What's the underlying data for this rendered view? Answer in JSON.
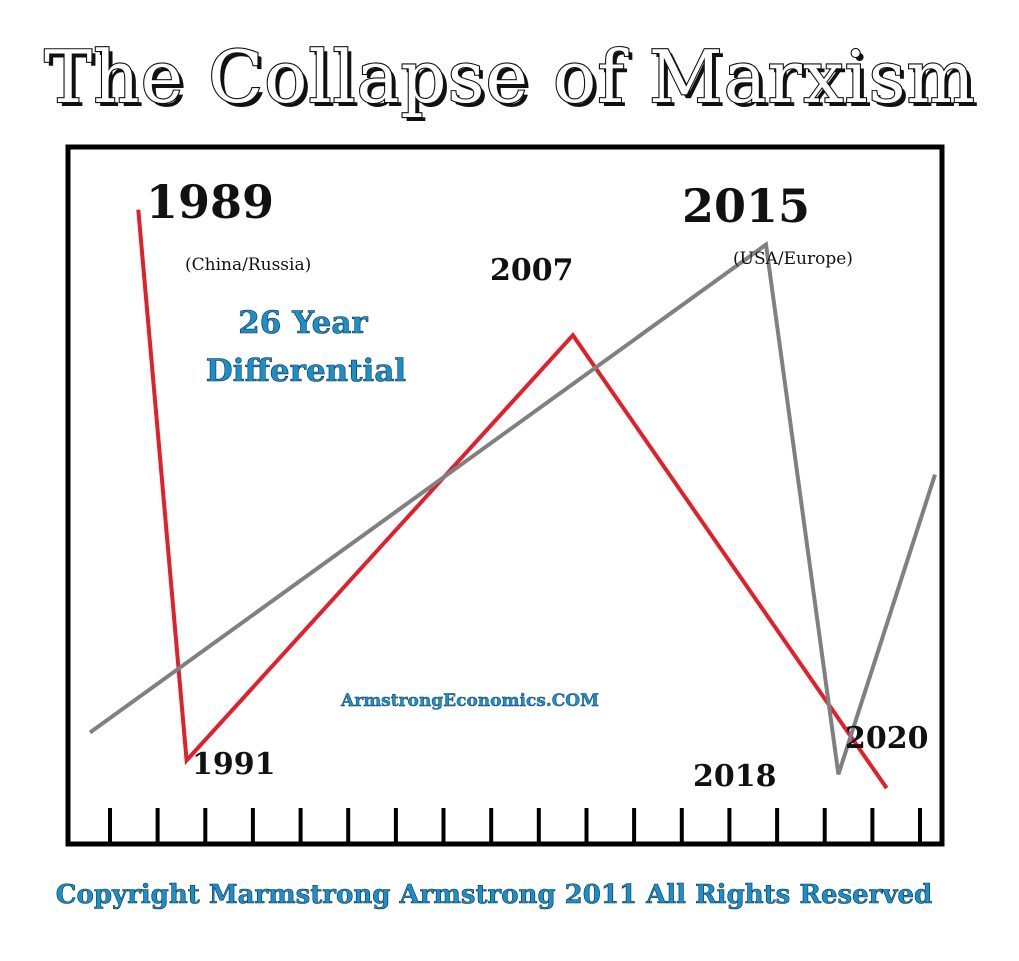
{
  "title": "The Collapse of Marxism",
  "chart_data": {
    "type": "line",
    "series": [
      {
        "color": "#e0202a",
        "points": [
          {
            "year": 1989,
            "level": 0.91
          },
          {
            "year": 1991,
            "level": 0.12
          },
          {
            "year": 2007,
            "level": 0.73
          },
          {
            "year": 2020,
            "level": 0.08
          }
        ]
      },
      {
        "color": "#808080",
        "points": [
          {
            "year": 1987,
            "level": 0.16
          },
          {
            "year": 2015,
            "level": 0.86
          },
          {
            "year": 2018,
            "level": 0.1
          },
          {
            "year": 2022,
            "level": 0.53
          }
        ]
      }
    ],
    "labels": [
      {
        "text": "1989",
        "size": "big"
      },
      {
        "text": "(China/Russia)",
        "size": "small"
      },
      {
        "text": "2007",
        "size": "mid"
      },
      {
        "text": "2015",
        "size": "big"
      },
      {
        "text": "(USA/Europe)",
        "size": "small"
      },
      {
        "text": "1991",
        "size": "mid"
      },
      {
        "text": "2018",
        "size": "mid"
      },
      {
        "text": "2020",
        "size": "mid"
      }
    ],
    "annotation": [
      "26 Year",
      "Differential"
    ],
    "watermark": "ArmstrongEconomics.COM",
    "tick_count": 18
  },
  "footer": "Copyright Marmstrong Armstrong 2011 All Rights Reserved"
}
